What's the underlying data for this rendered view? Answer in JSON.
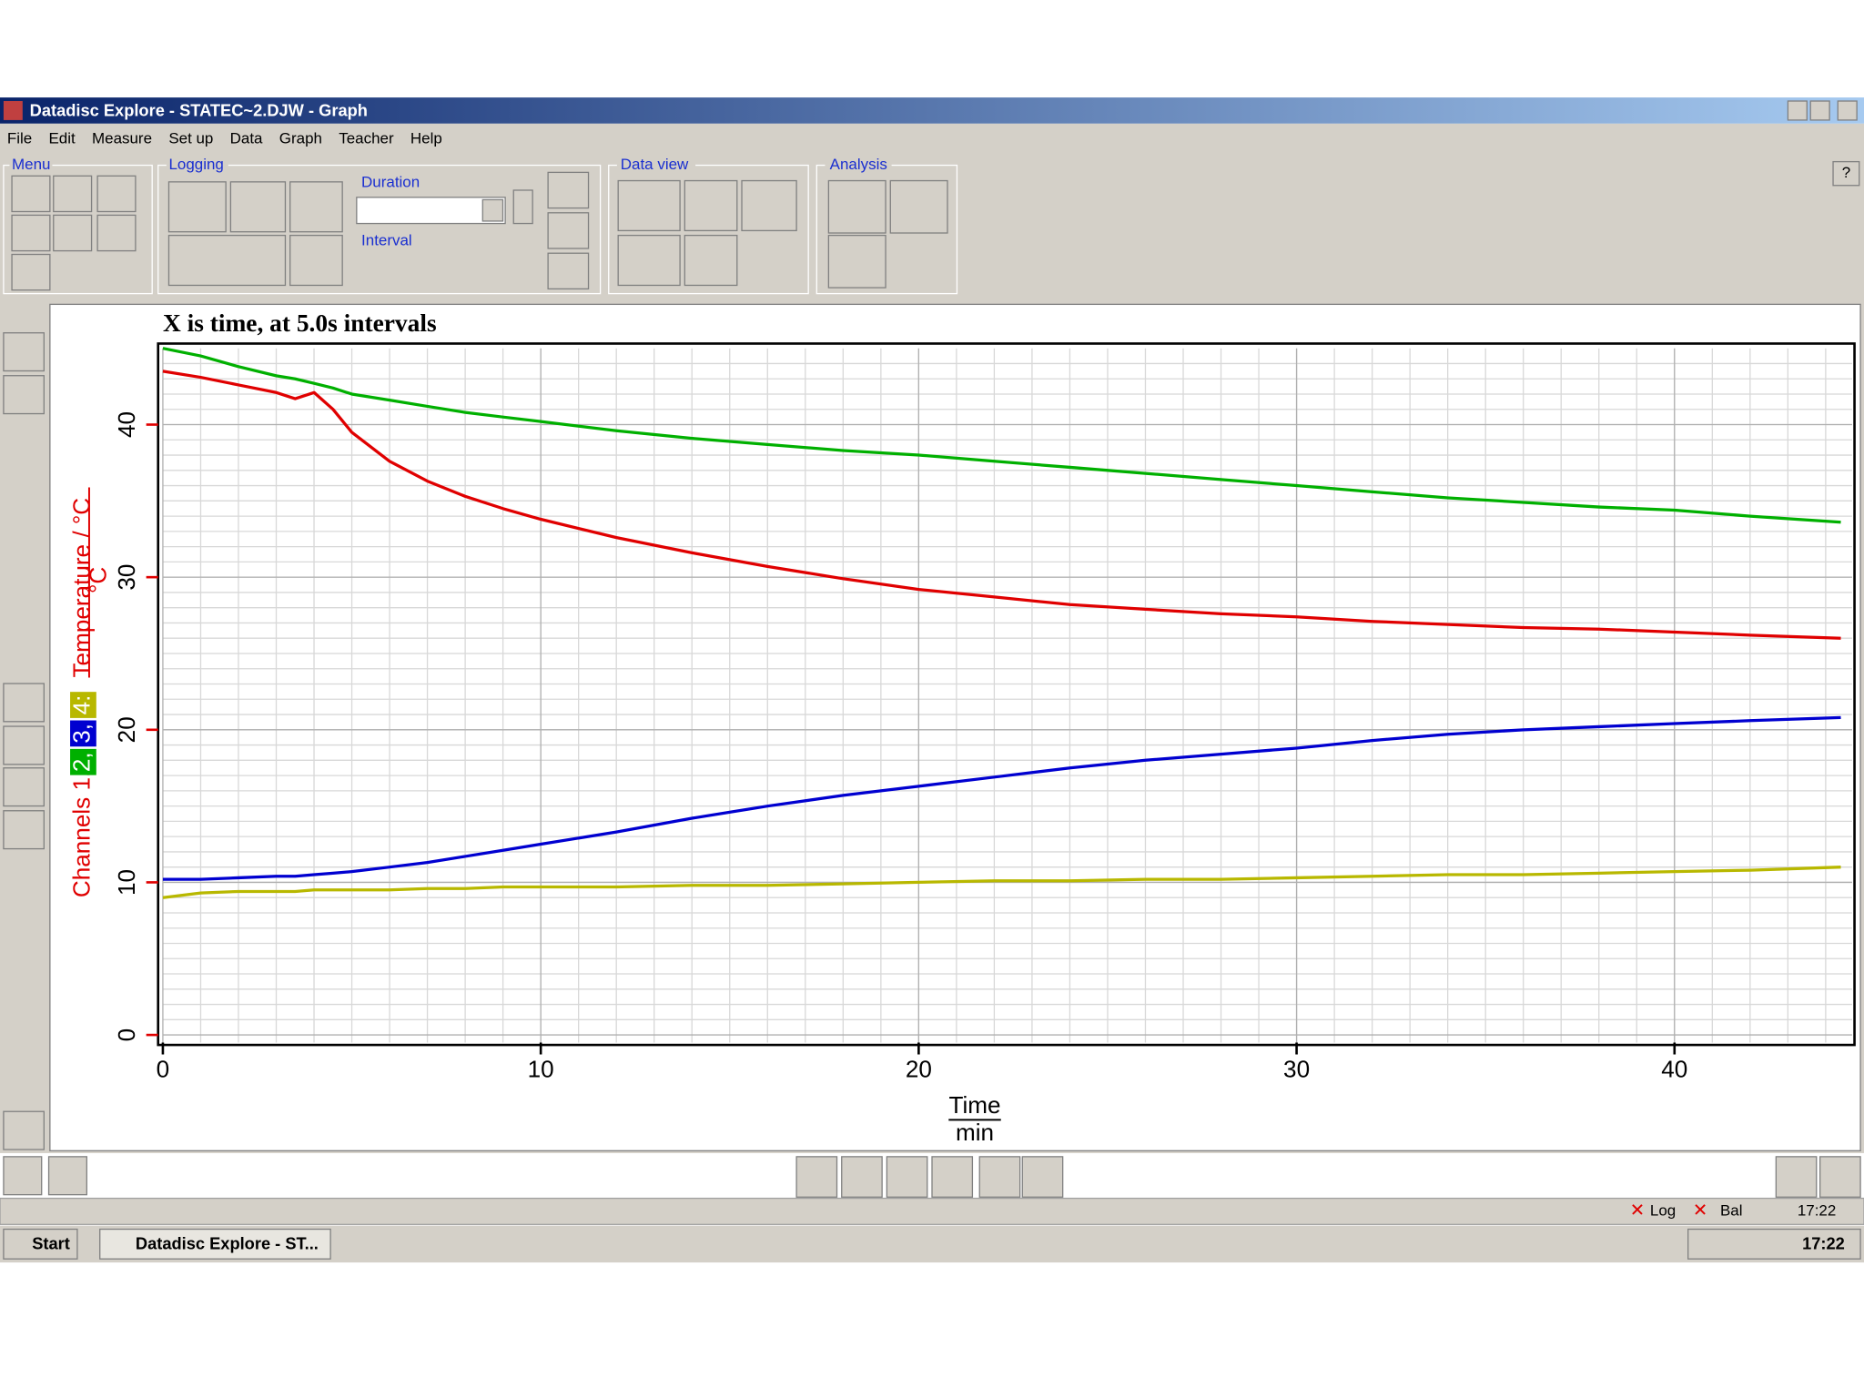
{
  "window": {
    "title": "Datadisc Explore - STATEC~2.DJW - Graph",
    "menu": [
      "File",
      "Edit",
      "Measure",
      "Set up",
      "Data",
      "Graph",
      "Teacher",
      "Help"
    ],
    "toolbar": {
      "groups": [
        "Menu",
        "Logging",
        "Data view",
        "Analysis"
      ],
      "duration": "Duration",
      "interval": "Interval",
      "help": "?"
    },
    "status": {
      "log": "Log",
      "bal": "Bal",
      "time": "17:22"
    },
    "taskbar": {
      "start": "Start",
      "task": "Datadisc Explore - ST...",
      "clock": "17:22"
    }
  },
  "chart_data": {
    "type": "line",
    "title": "X is time, at 5.0s intervals",
    "x_label": "Time",
    "x_unit": "min",
    "y_label": {
      "prefix": "Channels 1,",
      "channels": [
        "2,",
        "3,",
        "4:"
      ],
      "quantity": "Temperature / °C",
      "unit": "°C"
    },
    "x": [
      0,
      1,
      2,
      3,
      3.5,
      4,
      4.5,
      5,
      6,
      7,
      8,
      9,
      10,
      12,
      14,
      16,
      18,
      20,
      22,
      24,
      26,
      28,
      30,
      32,
      34,
      36,
      38,
      40,
      42,
      44.4
    ],
    "series": [
      {
        "color": "#e00000",
        "values": [
          43.5,
          43.1,
          42.6,
          42.1,
          41.7,
          42.1,
          41.0,
          39.5,
          37.6,
          36.3,
          35.3,
          34.5,
          33.8,
          32.6,
          31.6,
          30.7,
          29.9,
          29.2,
          28.7,
          28.2,
          27.9,
          27.6,
          27.4,
          27.1,
          26.9,
          26.7,
          26.6,
          26.4,
          26.2,
          26.0
        ]
      },
      {
        "color": "#00b000",
        "values": [
          45.0,
          44.5,
          43.8,
          43.2,
          43.0,
          42.7,
          42.4,
          42.0,
          41.6,
          41.2,
          40.8,
          40.5,
          40.2,
          39.6,
          39.1,
          38.7,
          38.3,
          38.0,
          37.6,
          37.2,
          36.8,
          36.4,
          36.0,
          35.6,
          35.2,
          34.9,
          34.6,
          34.4,
          34.0,
          33.6
        ]
      },
      {
        "color": "#0000d0",
        "values": [
          10.2,
          10.2,
          10.3,
          10.4,
          10.4,
          10.5,
          10.6,
          10.7,
          11.0,
          11.3,
          11.7,
          12.1,
          12.5,
          13.3,
          14.2,
          15.0,
          15.7,
          16.3,
          16.9,
          17.5,
          18.0,
          18.4,
          18.8,
          19.3,
          19.7,
          20.0,
          20.2,
          20.4,
          20.6,
          20.8
        ]
      },
      {
        "color": "#b8b800",
        "values": [
          9.0,
          9.3,
          9.4,
          9.4,
          9.4,
          9.5,
          9.5,
          9.5,
          9.5,
          9.6,
          9.6,
          9.7,
          9.7,
          9.7,
          9.8,
          9.8,
          9.9,
          10.0,
          10.1,
          10.1,
          10.2,
          10.2,
          10.3,
          10.4,
          10.5,
          10.5,
          10.6,
          10.7,
          10.8,
          11.0
        ]
      }
    ],
    "xlim": [
      0,
      44.7
    ],
    "ylim": [
      -0.5,
      45
    ],
    "xticks": [
      0,
      10,
      20,
      30,
      40
    ],
    "yticks": [
      0,
      10,
      20,
      30,
      40
    ],
    "grid": true
  }
}
